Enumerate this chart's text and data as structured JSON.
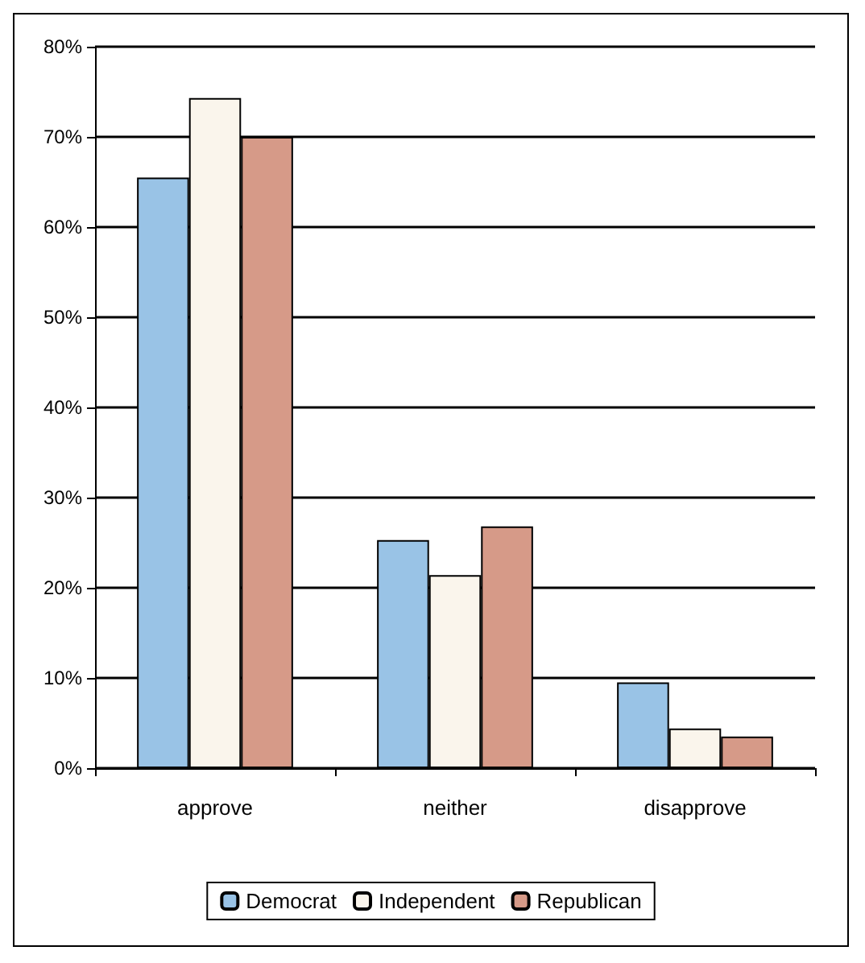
{
  "chart_data": {
    "type": "bar",
    "categories": [
      "approve",
      "neither",
      "disapprove"
    ],
    "series": [
      {
        "name": "Democrat",
        "color": "#99c3e6",
        "values": [
          65.5,
          25.3,
          9.5
        ]
      },
      {
        "name": "Independent",
        "color": "#faf5ec",
        "values": [
          74.3,
          21.4,
          4.4
        ]
      },
      {
        "name": "Republican",
        "color": "#d69a88",
        "values": [
          70,
          26.8,
          3.5
        ]
      }
    ],
    "ylim": [
      0,
      80
    ],
    "yticks": [
      {
        "value": 0,
        "label": "0%"
      },
      {
        "value": 10,
        "label": "10%"
      },
      {
        "value": 20,
        "label": "20%"
      },
      {
        "value": 30,
        "label": "30%"
      },
      {
        "value": 40,
        "label": "40%"
      },
      {
        "value": 50,
        "label": "50%"
      },
      {
        "value": 60,
        "label": "60%"
      },
      {
        "value": 70,
        "label": "70%"
      },
      {
        "value": 80,
        "label": "80%"
      }
    ],
    "grid": "y",
    "legend": "bottom"
  }
}
